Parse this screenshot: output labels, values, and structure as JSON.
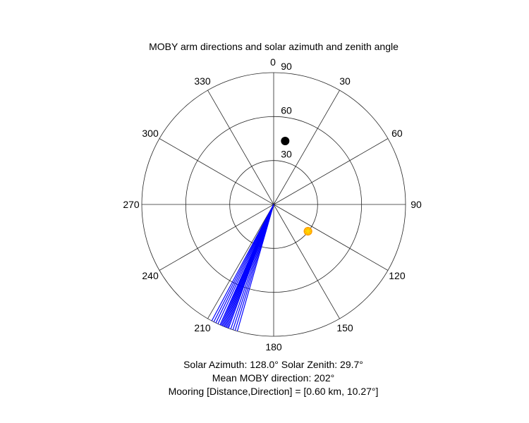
{
  "chart_data": {
    "type": "polar",
    "title": "MOBY arm directions and solar azimuth and zenith angle",
    "orientation": "0 at top, angles increase clockwise",
    "radial_axis": {
      "range": [
        90,
        0
      ],
      "rings": [
        30,
        60,
        90
      ],
      "tick_labels": [
        "90",
        "60",
        "30"
      ],
      "note": "zenith angle: 0 at outer edge, 90 at center"
    },
    "angular_ticks": [
      "0",
      "30",
      "60",
      "90",
      "120",
      "150",
      "180",
      "210",
      "240",
      "270",
      "300",
      "330"
    ],
    "grid": true,
    "series": [
      {
        "kind": "lines",
        "color": "#0000ff",
        "description": "MOBY arm direction rays from center to outer edge",
        "angles_deg": [
          196,
          197,
          198,
          199,
          200,
          200.5,
          201,
          201.5,
          202,
          202.5,
          203,
          203.5,
          204,
          205,
          206,
          207,
          208
        ]
      },
      {
        "kind": "marker",
        "marker": "filled-circle",
        "color": "#000000",
        "angle_deg": 10.27,
        "r_value": 46
      },
      {
        "kind": "marker",
        "marker": "sun",
        "color": "#ffd700",
        "edge_color": "#ff9900",
        "angle_deg": 128.0,
        "zenith_deg": 29.7
      }
    ],
    "footer": {
      "solar": "Solar Azimuth: 128.0°   Solar Zenith: 29.7°",
      "mean_direction": "Mean MOBY direction: 202°",
      "mooring": "Mooring [Distance,Direction] = [0.60 km, 10.27°]"
    }
  }
}
